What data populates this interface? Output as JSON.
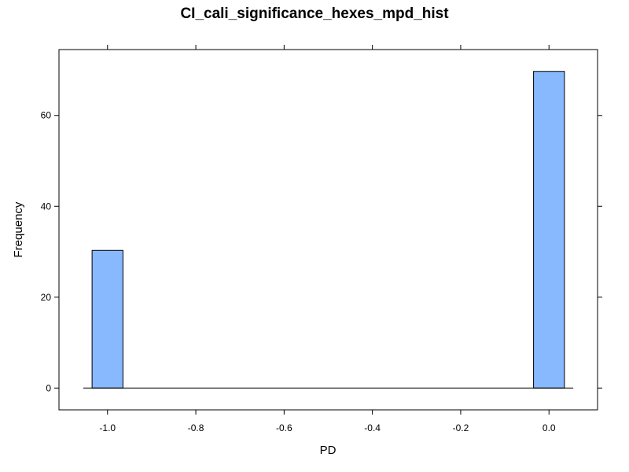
{
  "chart_data": {
    "type": "bar",
    "title": "CI_cali_significance_hexes_mpd_hist",
    "xlabel": "PD",
    "ylabel": "Frequency",
    "xlim": [
      -1.11,
      0.11
    ],
    "ylim": [
      -4.8,
      74.5
    ],
    "x_ticks": [
      -1.0,
      -0.8,
      -0.6,
      -0.4,
      -0.2,
      0.0
    ],
    "x_tick_labels": [
      "-1.0",
      "-0.8",
      "-0.6",
      "-0.4",
      "-0.2",
      "0.0"
    ],
    "y_ticks": [
      0,
      20,
      40,
      60
    ],
    "y_tick_labels": [
      "0",
      "20",
      "40",
      "60"
    ],
    "bin_width": 0.07,
    "baseline_range": [
      -1.055,
      0.055
    ],
    "bars": [
      {
        "x_center": -1.0,
        "value": 30.3
      },
      {
        "x_center": 0.0,
        "value": 69.7
      }
    ],
    "grid": false,
    "legend": "none",
    "colors": {
      "bar_fill": "#88b9ff",
      "bar_stroke": "#000000",
      "axis": "#000000"
    }
  }
}
